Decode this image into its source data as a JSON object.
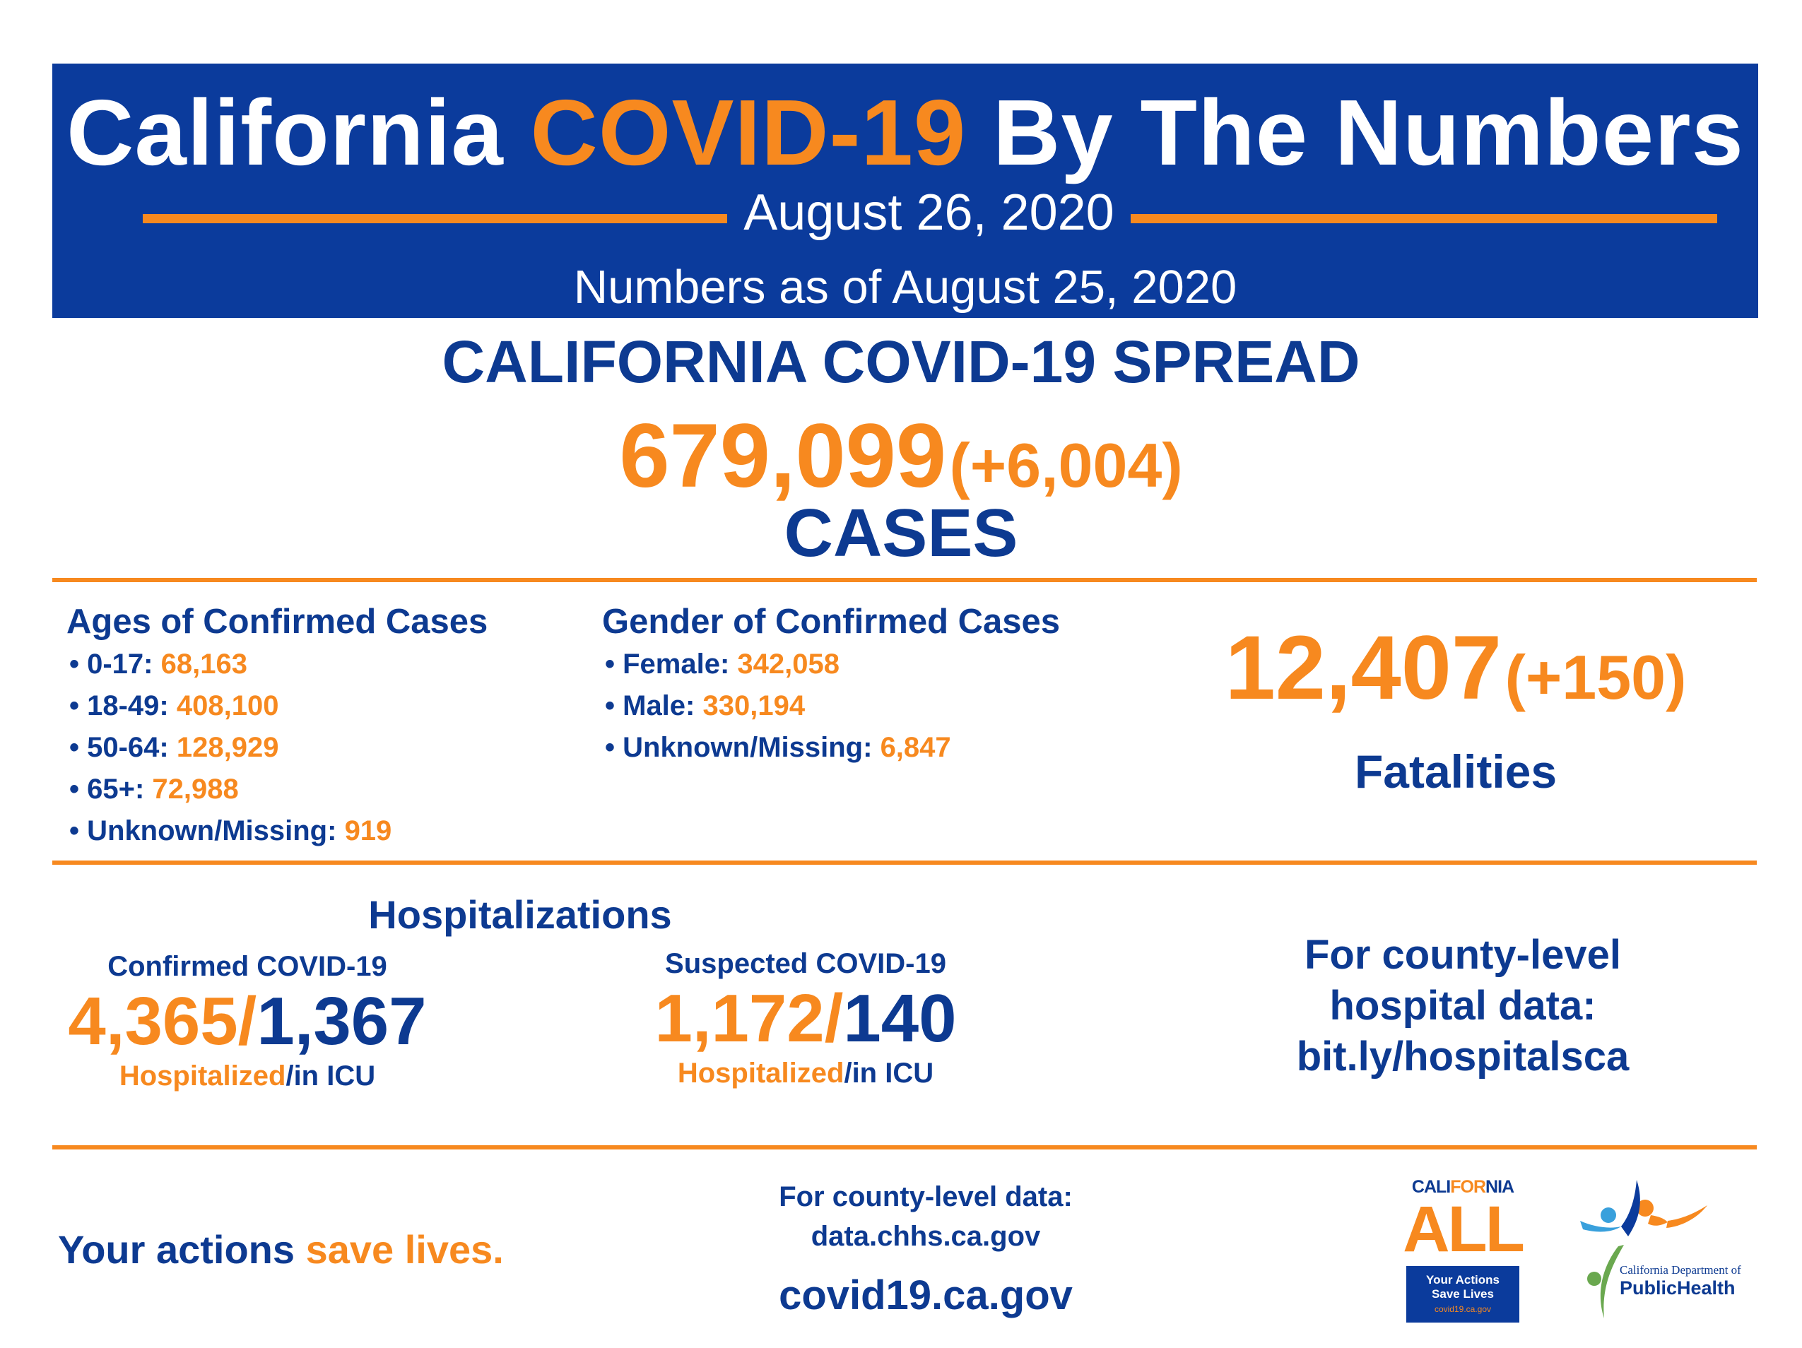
{
  "header": {
    "title_part1": "California ",
    "title_highlight": "COVID-19",
    "title_part2": " By The Numbers",
    "date": "August 26, 2020",
    "as_of": "Numbers as of August 25, 2020"
  },
  "spread": {
    "title": "CALIFORNIA COVID-19 SPREAD",
    "total_cases": "679,099",
    "new_cases": "(+6,004)",
    "cases_label": "CASES"
  },
  "ages": {
    "heading": "Ages of Confirmed Cases",
    "items": [
      {
        "label": "• 0-17: ",
        "value": "68,163"
      },
      {
        "label": "• 18-49: ",
        "value": "408,100"
      },
      {
        "label": "• 50-64: ",
        "value": "128,929"
      },
      {
        "label": "• 65+: ",
        "value": "72,988"
      },
      {
        "label": "• Unknown/Missing: ",
        "value": "919"
      }
    ]
  },
  "gender": {
    "heading": "Gender of Confirmed Cases",
    "items": [
      {
        "label": "• Female: ",
        "value": "342,058"
      },
      {
        "label": "• Male: ",
        "value": "330,194"
      },
      {
        "label": "• Unknown/Missing: ",
        "value": "6,847"
      }
    ]
  },
  "fatalities": {
    "total": "12,407",
    "change": "(+150)",
    "label": "Fatalities"
  },
  "hospitalizations": {
    "heading": "Hospitalizations",
    "confirmed": {
      "label": "Confirmed COVID-19",
      "hospitalized": "4,365/",
      "icu": "1,367",
      "foot_hospitalized": "Hospitalized",
      "foot_icu": "/in ICU"
    },
    "suspected": {
      "label": "Suspected COVID-19",
      "hospitalized": "1,172/",
      "icu": "140",
      "foot_hospitalized": "Hospitalized",
      "foot_icu": "/in ICU"
    }
  },
  "county_hospital": {
    "line1": "For county-level",
    "line2": "hospital data:",
    "line3": "bit.ly/hospitalsca"
  },
  "footer": {
    "slogan_part1": "Your actions ",
    "slogan_part2": "save lives.",
    "county_data_line1": "For county-level data:",
    "county_data_line2": "data.chhs.ca.gov",
    "site": "covid19.ca.gov"
  },
  "logos": {
    "ca_all": {
      "top_part1": "CALI",
      "top_part2": "FOR",
      "top_part3": "NIA",
      "big": "ALL",
      "line1": "Your Actions",
      "line2": "Save Lives",
      "line3": "covid19.ca.gov"
    },
    "cdph": {
      "dept": "California Department of",
      "name": "PublicHealth"
    }
  },
  "colors": {
    "navy": "#0d3a91",
    "header_blue": "#0b3b9c",
    "orange": "#f7891f",
    "green": "#6aa84f",
    "light_blue": "#39a0dc"
  }
}
